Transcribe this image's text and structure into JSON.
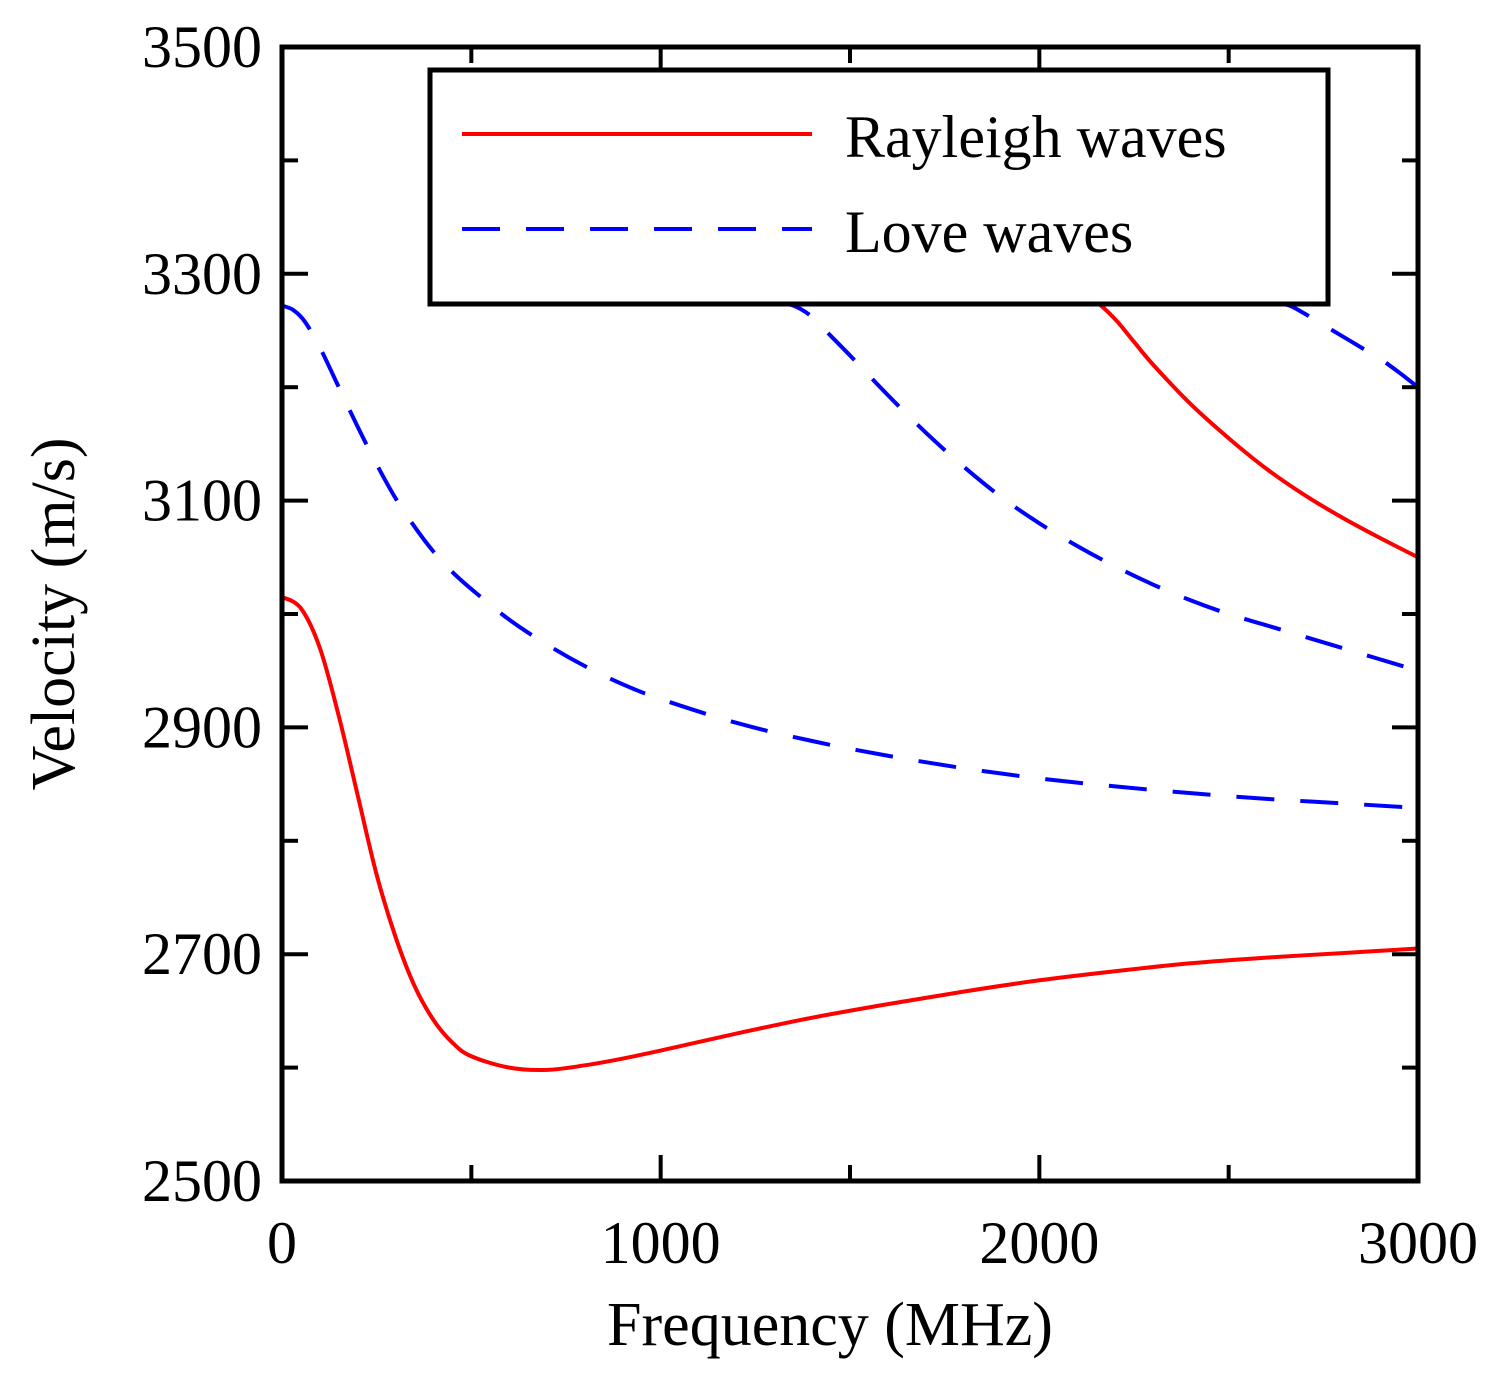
{
  "chart_data": {
    "type": "line",
    "title": "",
    "xlabel": "Frequency (MHz)",
    "ylabel": "Velocity (m/s)",
    "xlim": [
      0,
      3000
    ],
    "ylim": [
      2500,
      3500
    ],
    "xticks": [
      0,
      1000,
      2000,
      3000
    ],
    "xtick_labels": [
      "0",
      "1000",
      "2000",
      "3000"
    ],
    "yticks": [
      2500,
      2700,
      2900,
      3100,
      3300,
      3500
    ],
    "ytick_labels": [
      "2500",
      "2700",
      "2900",
      "3100",
      "3300",
      "3500"
    ],
    "x_minor_step": 500,
    "y_minor_step": 100,
    "grid": false,
    "legend": {
      "position": "top-right",
      "entries": [
        {
          "label": "Rayleigh waves",
          "color": "#ff0000",
          "style": "solid"
        },
        {
          "label": "Love waves",
          "color": "#0000ff",
          "style": "dashed"
        }
      ]
    },
    "series": [
      {
        "name": "Rayleigh waves",
        "mode": 0,
        "color": "#ff0000",
        "style": "solid",
        "x": [
          0,
          50,
          100,
          150,
          200,
          250,
          300,
          350,
          400,
          450,
          500,
          600,
          700,
          800,
          900,
          1000,
          1200,
          1400,
          1600,
          1800,
          2000,
          2200,
          2400,
          2600,
          2800,
          3000
        ],
        "y": [
          3015,
          3005,
          2970,
          2910,
          2840,
          2770,
          2715,
          2672,
          2642,
          2622,
          2610,
          2600,
          2598,
          2602,
          2608,
          2615,
          2630,
          2644,
          2656,
          2667,
          2677,
          2685,
          2692,
          2697,
          2701,
          2705
        ]
      },
      {
        "name": "Rayleigh waves",
        "mode": 1,
        "color": "#ff0000",
        "style": "solid",
        "x": [
          2100,
          2150,
          2200,
          2250,
          2300,
          2400,
          2500,
          2600,
          2700,
          2800,
          2900,
          3000
        ],
        "y": [
          3280,
          3275,
          3260,
          3240,
          3220,
          3185,
          3155,
          3128,
          3105,
          3085,
          3067,
          3050
        ]
      },
      {
        "name": "Love waves",
        "mode": 0,
        "color": "#0000ff",
        "style": "dashed",
        "x": [
          0,
          30,
          60,
          100,
          150,
          200,
          250,
          300,
          350,
          400,
          450,
          500,
          600,
          700,
          800,
          900,
          1000,
          1200,
          1400,
          1600,
          1800,
          2000,
          2200,
          2400,
          2600,
          2800,
          3000
        ],
        "y": [
          3272,
          3268,
          3258,
          3235,
          3200,
          3165,
          3132,
          3102,
          3077,
          3055,
          3037,
          3022,
          2995,
          2973,
          2954,
          2938,
          2925,
          2904,
          2888,
          2875,
          2864,
          2855,
          2848,
          2842,
          2837,
          2833,
          2829
        ]
      },
      {
        "name": "Love waves",
        "mode": 1,
        "color": "#0000ff",
        "style": "dashed",
        "x": [
          1300,
          1350,
          1400,
          1450,
          1500,
          1600,
          1700,
          1800,
          1900,
          2000,
          2100,
          2200,
          2300,
          2400,
          2500,
          2600,
          2700,
          2800,
          2900,
          3000
        ],
        "y": [
          3275,
          3272,
          3262,
          3245,
          3228,
          3193,
          3160,
          3130,
          3103,
          3080,
          3060,
          3042,
          3026,
          3012,
          3000,
          2990,
          2980,
          2970,
          2960,
          2950
        ]
      },
      {
        "name": "Love waves",
        "mode": 2,
        "color": "#0000ff",
        "style": "dashed",
        "x": [
          2620,
          2660,
          2700,
          2750,
          2800,
          2850,
          2900,
          2950,
          3000
        ],
        "y": [
          3275,
          3272,
          3265,
          3255,
          3245,
          3235,
          3225,
          3213,
          3200
        ]
      }
    ]
  }
}
